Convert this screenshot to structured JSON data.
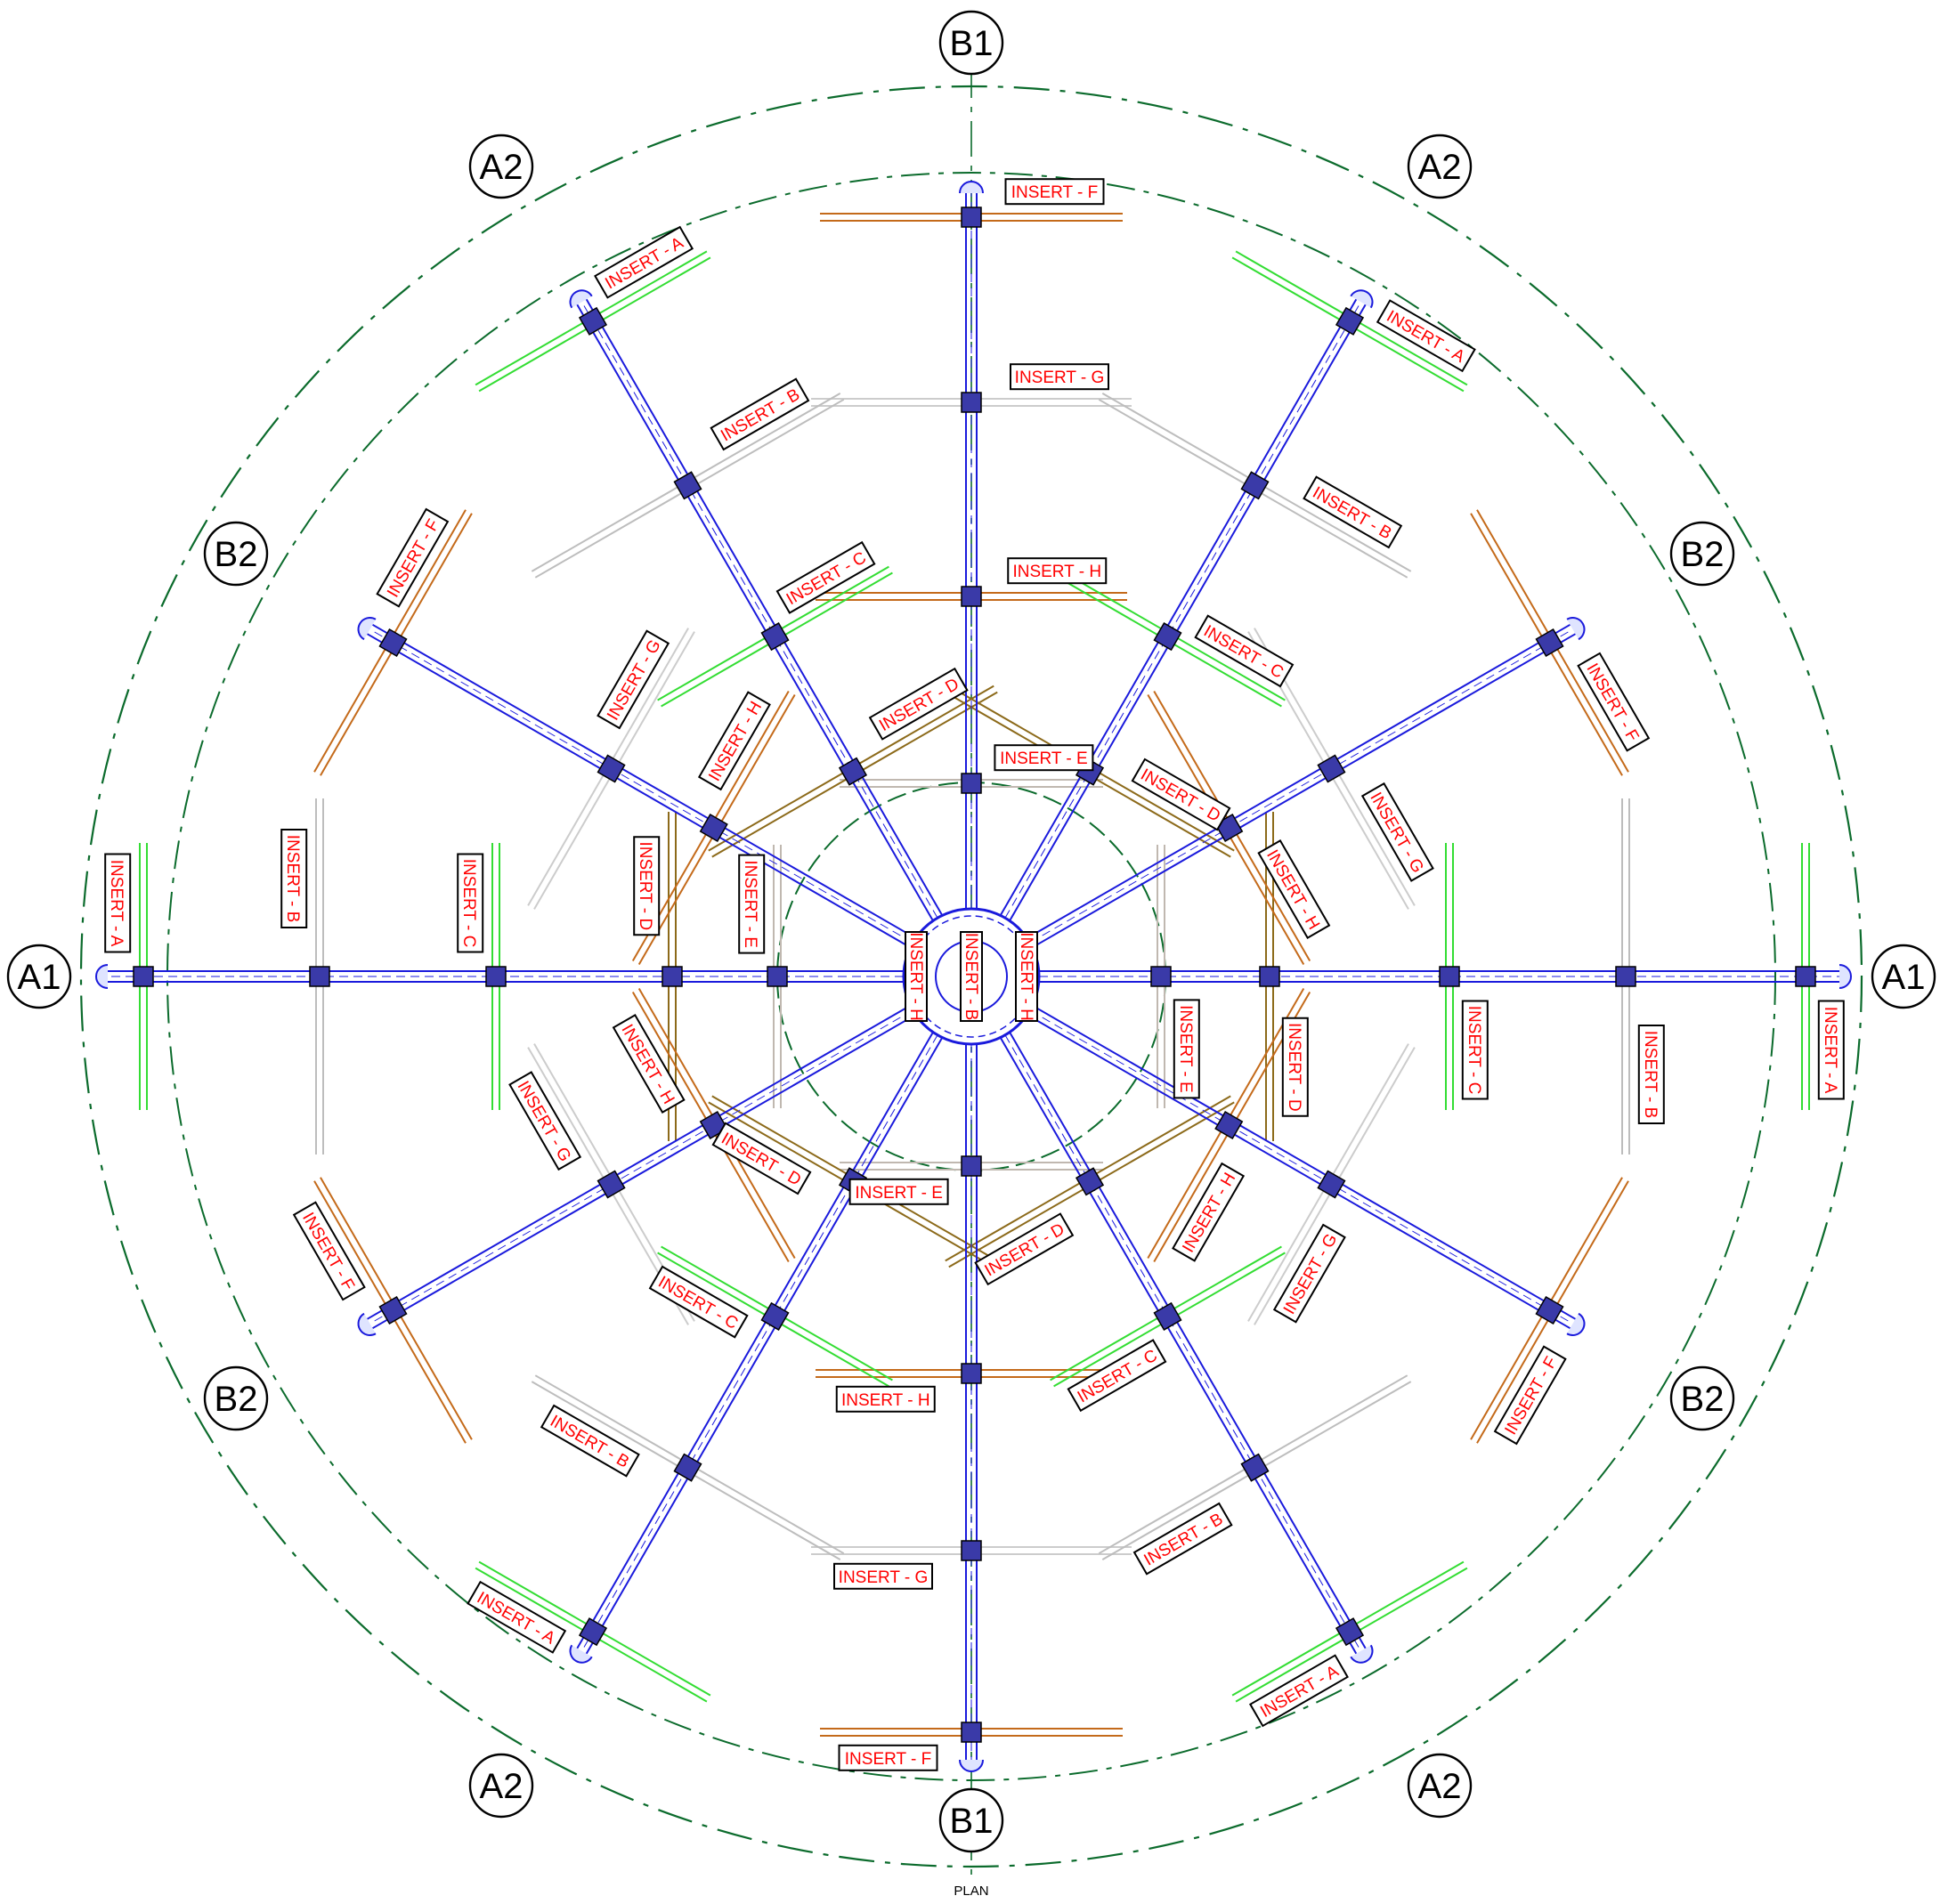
{
  "drawing": {
    "caption": "PLAN",
    "grid_labels": {
      "a1": "A1",
      "a2": "A2",
      "b1": "B1",
      "b2": "B2"
    },
    "insert_labels": {
      "a": "INSERT - A",
      "b": "INSERT - B",
      "c": "INSERT - C",
      "d": "INSERT - D",
      "e": "INSERT - E",
      "f": "INSERT - F",
      "g": "INSERT - G",
      "h": "INSERT - H"
    },
    "colors": {
      "beam": "#1a1adc",
      "outer_circle": "#0b6b2c",
      "insert_a": "#33dd33",
      "insert_b": "#bdbdbd",
      "insert_c": "#33dd33",
      "insert_c_alt": "#aa44cc",
      "insert_d": "#8c6a1a",
      "insert_e": "#c0b8b0",
      "insert_f": "#c46a1a",
      "insert_g": "#cccccc",
      "insert_h": "#c46a1a",
      "label_text": "#ff0000"
    }
  }
}
